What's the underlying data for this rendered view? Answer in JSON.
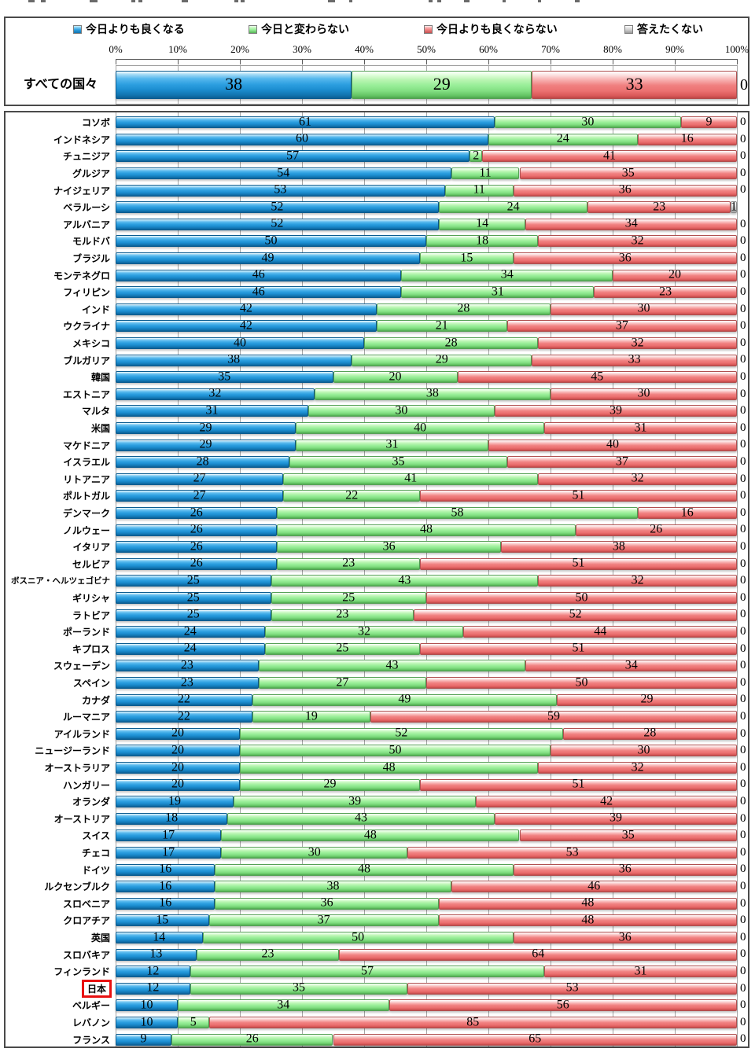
{
  "legend": {
    "items": [
      {
        "label": "今日よりも良くなる",
        "key": "better"
      },
      {
        "label": "今日と変わらない",
        "key": "same"
      },
      {
        "label": "今日よりも良くならない",
        "key": "worse"
      },
      {
        "label": "答えたくない",
        "key": "na"
      }
    ]
  },
  "colors": {
    "better": "#2d9fe0",
    "same": "#98ee98",
    "worse": "#f08080",
    "na": "#c9c9c9",
    "highlight_box": "#e81010",
    "gridline": "#a6a6a6",
    "panel_border": "#4a4a4a"
  },
  "chart_data": {
    "type": "bar",
    "orientation": "horizontal",
    "stacked": true,
    "legend_position": "top",
    "xlim": [
      0,
      100
    ],
    "axis_ticks": [
      "0%",
      "10%",
      "20%",
      "30%",
      "40%",
      "50%",
      "60%",
      "70%",
      "80%",
      "90%",
      "100%"
    ],
    "series_names": [
      "今日よりも良くなる",
      "今日と変わらない",
      "今日よりも良くならない",
      "答えたくない"
    ],
    "series_keys": [
      "better",
      "same",
      "worse",
      "na"
    ],
    "summary": {
      "label": "すべての国々",
      "values": [
        38,
        29,
        33,
        0
      ]
    },
    "rows": [
      {
        "label": "コソボ",
        "values": [
          61,
          30,
          9,
          0
        ]
      },
      {
        "label": "インドネシア",
        "values": [
          60,
          24,
          16,
          0
        ]
      },
      {
        "label": "チュニジア",
        "values": [
          57,
          2,
          41,
          0
        ]
      },
      {
        "label": "グルジア",
        "values": [
          54,
          11,
          35,
          0
        ]
      },
      {
        "label": "ナイジェリア",
        "values": [
          53,
          11,
          36,
          0
        ]
      },
      {
        "label": "ベラルーシ",
        "values": [
          52,
          24,
          23,
          1
        ]
      },
      {
        "label": "アルバニア",
        "values": [
          52,
          14,
          34,
          0
        ]
      },
      {
        "label": "モルドバ",
        "values": [
          50,
          18,
          32,
          0
        ]
      },
      {
        "label": "ブラジル",
        "values": [
          49,
          15,
          36,
          0
        ]
      },
      {
        "label": "モンテネグロ",
        "values": [
          46,
          34,
          20,
          0
        ]
      },
      {
        "label": "フィリピン",
        "values": [
          46,
          31,
          23,
          0
        ]
      },
      {
        "label": "インド",
        "values": [
          42,
          28,
          30,
          0
        ]
      },
      {
        "label": "ウクライナ",
        "values": [
          42,
          21,
          37,
          0
        ]
      },
      {
        "label": "メキシコ",
        "values": [
          40,
          28,
          32,
          0
        ]
      },
      {
        "label": "ブルガリア",
        "values": [
          38,
          29,
          33,
          0
        ]
      },
      {
        "label": "韓国",
        "values": [
          35,
          20,
          45,
          0
        ]
      },
      {
        "label": "エストニア",
        "values": [
          32,
          38,
          30,
          0
        ]
      },
      {
        "label": "マルタ",
        "values": [
          31,
          30,
          39,
          0
        ]
      },
      {
        "label": "米国",
        "values": [
          29,
          40,
          31,
          0
        ]
      },
      {
        "label": "マケドニア",
        "values": [
          29,
          31,
          40,
          0
        ]
      },
      {
        "label": "イスラエル",
        "values": [
          28,
          35,
          37,
          0
        ]
      },
      {
        "label": "リトアニア",
        "values": [
          27,
          41,
          32,
          0
        ]
      },
      {
        "label": "ポルトガル",
        "values": [
          27,
          22,
          51,
          0
        ]
      },
      {
        "label": "デンマーク",
        "values": [
          26,
          58,
          16,
          0
        ]
      },
      {
        "label": "ノルウェー",
        "values": [
          26,
          48,
          26,
          0
        ]
      },
      {
        "label": "イタリア",
        "values": [
          26,
          36,
          38,
          0
        ]
      },
      {
        "label": "セルビア",
        "values": [
          26,
          23,
          51,
          0
        ]
      },
      {
        "label": "ボスニア・ヘルツェゴビナ",
        "values": [
          25,
          43,
          32,
          0
        ]
      },
      {
        "label": "ギリシャ",
        "values": [
          25,
          25,
          50,
          0
        ]
      },
      {
        "label": "ラトビア",
        "values": [
          25,
          23,
          52,
          0
        ]
      },
      {
        "label": "ポーランド",
        "values": [
          24,
          32,
          44,
          0
        ]
      },
      {
        "label": "キプロス",
        "values": [
          24,
          25,
          51,
          0
        ]
      },
      {
        "label": "スウェーデン",
        "values": [
          23,
          43,
          34,
          0
        ]
      },
      {
        "label": "スペイン",
        "values": [
          23,
          27,
          50,
          0
        ]
      },
      {
        "label": "カナダ",
        "values": [
          22,
          49,
          29,
          0
        ]
      },
      {
        "label": "ルーマニア",
        "values": [
          22,
          19,
          59,
          0
        ]
      },
      {
        "label": "アイルランド",
        "values": [
          20,
          52,
          28,
          0
        ]
      },
      {
        "label": "ニュージーランド",
        "values": [
          20,
          50,
          30,
          0
        ]
      },
      {
        "label": "オーストラリア",
        "values": [
          20,
          48,
          32,
          0
        ]
      },
      {
        "label": "ハンガリー",
        "values": [
          20,
          29,
          51,
          0
        ]
      },
      {
        "label": "オランダ",
        "values": [
          19,
          39,
          42,
          0
        ]
      },
      {
        "label": "オーストリア",
        "values": [
          18,
          43,
          39,
          0
        ]
      },
      {
        "label": "スイス",
        "values": [
          17,
          48,
          35,
          0
        ]
      },
      {
        "label": "チェコ",
        "values": [
          17,
          30,
          53,
          0
        ]
      },
      {
        "label": "ドイツ",
        "values": [
          16,
          48,
          36,
          0
        ]
      },
      {
        "label": "ルクセンブルク",
        "values": [
          16,
          38,
          46,
          0
        ]
      },
      {
        "label": "スロベニア",
        "values": [
          16,
          36,
          48,
          0
        ]
      },
      {
        "label": "クロアチア",
        "values": [
          15,
          37,
          48,
          0
        ]
      },
      {
        "label": "英国",
        "values": [
          14,
          50,
          36,
          0
        ]
      },
      {
        "label": "スロバキア",
        "values": [
          13,
          23,
          64,
          0
        ]
      },
      {
        "label": "フィンランド",
        "values": [
          12,
          57,
          31,
          0
        ]
      },
      {
        "label": "日本",
        "values": [
          12,
          35,
          53,
          0
        ],
        "highlighted": true
      },
      {
        "label": "ベルギー",
        "values": [
          10,
          34,
          56,
          0
        ]
      },
      {
        "label": "レバノン",
        "values": [
          10,
          5,
          85,
          0
        ]
      },
      {
        "label": "フランス",
        "values": [
          9,
          26,
          65,
          0
        ]
      }
    ]
  }
}
